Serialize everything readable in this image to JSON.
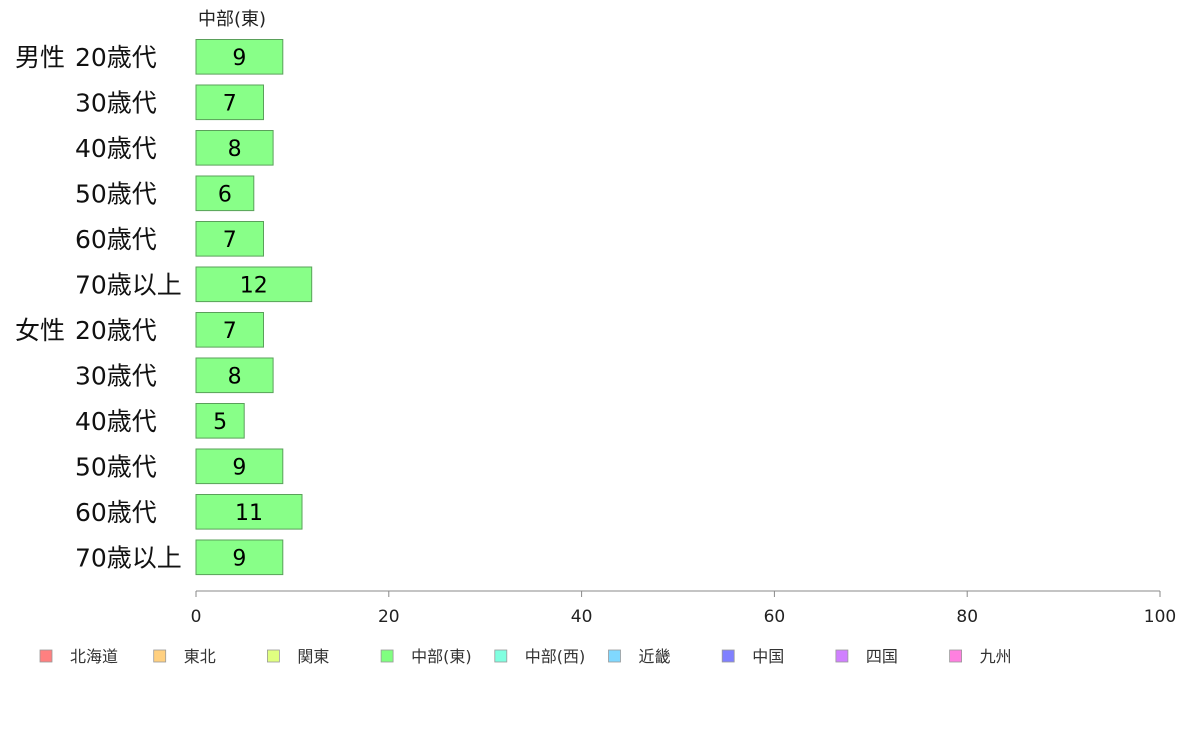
{
  "chart_data": {
    "type": "bar",
    "orientation": "horizontal",
    "title": "",
    "xlabel": "",
    "ylabel": "",
    "series_title": "中部(東)",
    "groups": [
      "男性",
      "女性"
    ],
    "categories": [
      "20歳代",
      "30歳代",
      "40歳代",
      "50歳代",
      "60歳代",
      "70歳以上",
      "20歳代",
      "30歳代",
      "40歳代",
      "50歳代",
      "60歳代",
      "70歳以上"
    ],
    "group_of_category": [
      0,
      0,
      0,
      0,
      0,
      0,
      1,
      1,
      1,
      1,
      1,
      1
    ],
    "series": [
      {
        "name": "中部(東)",
        "color": "#88ff88",
        "values": [
          9,
          7,
          8,
          6,
          7,
          12,
          7,
          8,
          5,
          9,
          11,
          9
        ]
      }
    ],
    "xlim": [
      0,
      100
    ],
    "xticks": [
      0,
      20,
      40,
      60,
      80,
      100
    ],
    "grid": false,
    "legend_position": "bottom",
    "legend": [
      {
        "label": "北海道",
        "color": "#ff8080"
      },
      {
        "label": "東北",
        "color": "#ffd080"
      },
      {
        "label": "関東",
        "color": "#e0ff80"
      },
      {
        "label": "中部(東)",
        "color": "#80ff80"
      },
      {
        "label": "中部(西)",
        "color": "#80ffe0"
      },
      {
        "label": "近畿",
        "color": "#80d8ff"
      },
      {
        "label": "中国",
        "color": "#8080ff"
      },
      {
        "label": "四国",
        "color": "#d080ff"
      },
      {
        "label": "九州",
        "color": "#ff80e0"
      }
    ]
  }
}
